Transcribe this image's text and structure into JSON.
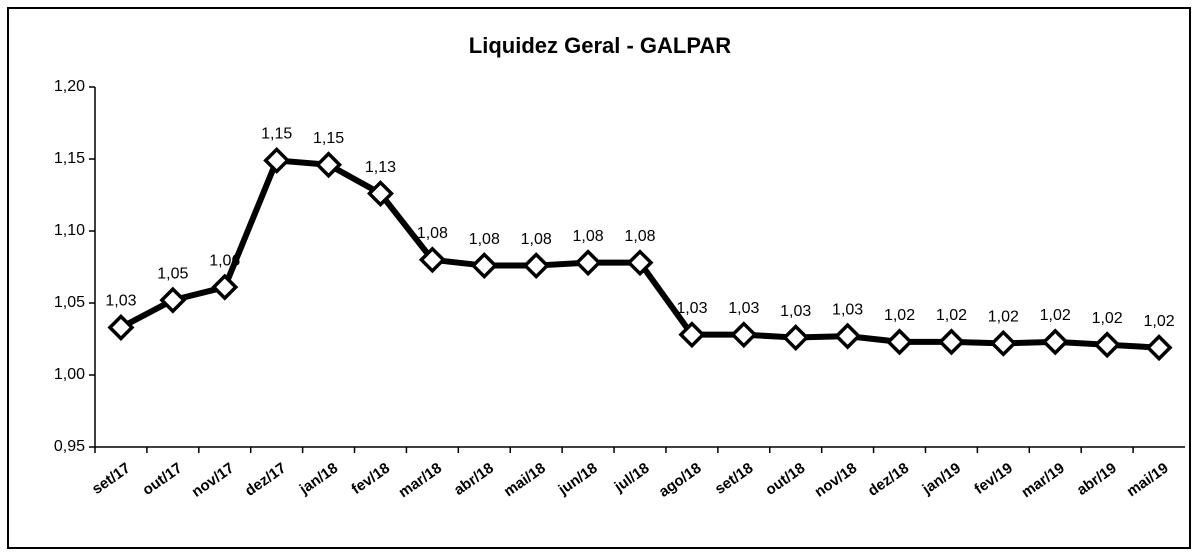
{
  "chart_data": {
    "type": "line",
    "title": "Liquidez Geral - GALPAR",
    "categories": [
      "set/17",
      "out/17",
      "nov/17",
      "dez/17",
      "jan/18",
      "fev/18",
      "mar/18",
      "abr/18",
      "mai/18",
      "jun/18",
      "jul/18",
      "ago/18",
      "set/18",
      "out/18",
      "nov/18",
      "dez/18",
      "jan/19",
      "fev/19",
      "mar/19",
      "abr/19",
      "mai/19"
    ],
    "series": [
      {
        "name": "Liquidez Geral",
        "color": "#000000",
        "values": [
          1.033,
          1.052,
          1.061,
          1.149,
          1.146,
          1.126,
          1.08,
          1.076,
          1.076,
          1.078,
          1.078,
          1.028,
          1.028,
          1.026,
          1.027,
          1.023,
          1.023,
          1.022,
          1.023,
          1.021,
          1.019
        ],
        "value_labels": [
          "1,03",
          "1,05",
          "1,06",
          "1,15",
          "1,15",
          "1,13",
          "1,08",
          "1,08",
          "1,08",
          "1,08",
          "1,08",
          "1,03",
          "1,03",
          "1,03",
          "1,03",
          "1,02",
          "1,02",
          "1,02",
          "1,02",
          "1,02",
          "1,02"
        ]
      }
    ],
    "ylim": [
      0.95,
      1.2
    ],
    "yticks": [
      {
        "value": 0.95,
        "label": "0,95"
      },
      {
        "value": 1.0,
        "label": "1,00"
      },
      {
        "value": 1.05,
        "label": "1,05"
      },
      {
        "value": 1.1,
        "label": "1,10"
      },
      {
        "value": 1.15,
        "label": "1,15"
      },
      {
        "value": 1.2,
        "label": "1,20"
      }
    ],
    "grid": false
  }
}
